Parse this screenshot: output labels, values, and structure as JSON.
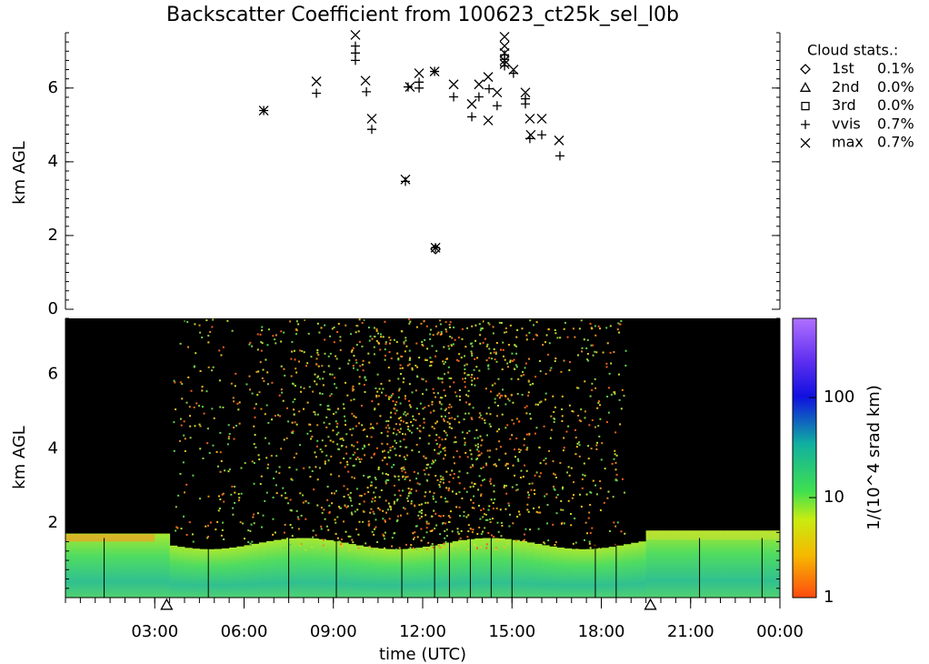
{
  "chart_data": [
    {
      "type": "scatter",
      "title": "Backscatter Coefficient from 100623_ct25k_sel_l0b",
      "ylabel": "km AGL",
      "xlim": [
        0,
        24
      ],
      "ylim": [
        0,
        7.5
      ],
      "yticks": [
        0,
        2,
        4,
        6
      ],
      "legend_title": "Cloud stats.:",
      "series": [
        {
          "name": "1st",
          "marker": "diamond",
          "label": "0.1%",
          "x": [
            12.43
          ],
          "y": [
            1.63
          ]
        },
        {
          "name": "2nd",
          "marker": "triangle",
          "label": "0.0%",
          "x": [],
          "y": []
        },
        {
          "name": "3rd",
          "marker": "square",
          "label": "0.0%",
          "x": [],
          "y": []
        },
        {
          "name": "vvis",
          "marker": "plus",
          "label": "0.7%",
          "x": [
            6.66,
            8.43,
            9.74,
            9.74,
            9.74,
            10.11,
            10.29,
            11.42,
            11.51,
            11.88,
            11.88,
            12.4,
            12.43,
            13.04,
            13.65,
            13.89,
            14.23,
            14.5,
            14.75,
            14.75,
            14.75,
            15.05,
            15.45,
            15.45,
            15.6,
            16.0,
            16.61
          ],
          "y": [
            5.39,
            5.86,
            7.14,
            6.95,
            6.75,
            5.9,
            4.88,
            3.47,
            6.03,
            6.16,
            6.0,
            6.45,
            1.67,
            5.76,
            5.22,
            5.76,
            5.98,
            5.52,
            6.9,
            6.78,
            6.6,
            6.4,
            5.71,
            5.57,
            4.63,
            4.73,
            4.16
          ]
        },
        {
          "name": "max",
          "marker": "cross",
          "label": "0.7%",
          "x": [
            6.66,
            8.43,
            9.74,
            10.08,
            10.29,
            11.42,
            11.57,
            11.88,
            12.4,
            12.43,
            13.04,
            13.65,
            13.89,
            14.2,
            14.2,
            14.5,
            14.75,
            14.75,
            14.75,
            14.75,
            14.75,
            15.05,
            15.45,
            15.6,
            15.63,
            16.0,
            16.58
          ],
          "y": [
            5.39,
            6.18,
            7.44,
            6.2,
            5.17,
            3.52,
            6.03,
            6.4,
            6.45,
            1.67,
            6.1,
            5.57,
            6.1,
            6.3,
            5.12,
            5.88,
            7.39,
            7.14,
            6.95,
            6.75,
            6.65,
            6.5,
            5.88,
            5.17,
            4.73,
            5.17,
            4.58
          ]
        }
      ]
    },
    {
      "type": "heatmap",
      "ylabel": "km AGL",
      "xlabel": "time (UTC)",
      "xlim": [
        0,
        24
      ],
      "ylim": [
        0,
        7.5
      ],
      "yticks": [
        2,
        4,
        6
      ],
      "xticks": [
        {
          "value": 3,
          "label": "03:00"
        },
        {
          "value": 6,
          "label": "06:00"
        },
        {
          "value": 9,
          "label": "09:00"
        },
        {
          "value": 12,
          "label": "12:00"
        },
        {
          "value": 15,
          "label": "15:00"
        },
        {
          "value": 18,
          "label": "18:00"
        },
        {
          "value": 21,
          "label": "21:00"
        },
        {
          "value": 24,
          "label": "00:00"
        }
      ],
      "markers_x": [
        3.4,
        19.65
      ],
      "colorbar": {
        "label": "1/(10^4 srad km)",
        "log": true,
        "lim": [
          1,
          620
        ],
        "ticks": [
          1,
          10,
          100
        ]
      }
    }
  ]
}
